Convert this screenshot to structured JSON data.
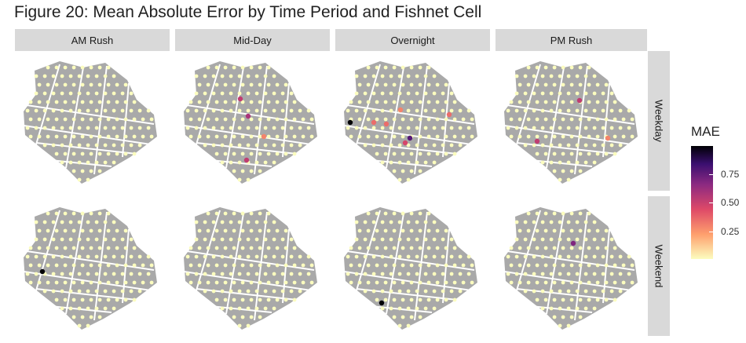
{
  "chart_data": {
    "type": "heatmap",
    "title": "Figure 20: Mean Absolute Error by Time Period and Fishnet Cell",
    "facet_columns": [
      "AM Rush",
      "Mid-Day",
      "Overnight",
      "PM Rush"
    ],
    "facet_rows": [
      "Weekday",
      "Weekend"
    ],
    "color_scale": {
      "name": "magma",
      "label": "MAE",
      "ticks": [
        0.25,
        0.5,
        0.75
      ],
      "tick_labels": [
        "0.25",
        "0.50",
        "0.75"
      ],
      "range": [
        0.0,
        0.95
      ],
      "colors": [
        "#fcfdbf",
        "#fe9f6d",
        "#de4968",
        "#8c2981",
        "#3b0f70",
        "#000004"
      ]
    },
    "base_color": "#a9a9a9",
    "street_color": "#ffffff",
    "highlighted_cells": [
      {
        "period": "Mid-Day",
        "day": "Weekday",
        "mae": 0.45
      },
      {
        "period": "Mid-Day",
        "day": "Weekday",
        "mae": 0.5
      },
      {
        "period": "Mid-Day",
        "day": "Weekday",
        "mae": 0.25
      },
      {
        "period": "Mid-Day",
        "day": "Weekday",
        "mae": 0.45
      },
      {
        "period": "Overnight",
        "day": "Weekday",
        "mae": 0.95
      },
      {
        "period": "Overnight",
        "day": "Weekday",
        "mae": 0.3
      },
      {
        "period": "Overnight",
        "day": "Weekday",
        "mae": 0.3
      },
      {
        "period": "Overnight",
        "day": "Weekday",
        "mae": 0.25
      },
      {
        "period": "Overnight",
        "day": "Weekday",
        "mae": 0.7
      },
      {
        "period": "Overnight",
        "day": "Weekday",
        "mae": 0.4
      },
      {
        "period": "Overnight",
        "day": "Weekday",
        "mae": 0.3
      },
      {
        "period": "PM Rush",
        "day": "Weekday",
        "mae": 0.45
      },
      {
        "period": "PM Rush",
        "day": "Weekday",
        "mae": 0.45
      },
      {
        "period": "PM Rush",
        "day": "Weekday",
        "mae": 0.25
      },
      {
        "period": "AM Rush",
        "day": "Weekend",
        "mae": 0.95
      },
      {
        "period": "Overnight",
        "day": "Weekend",
        "mae": 0.95
      },
      {
        "period": "PM Rush",
        "day": "Weekend",
        "mae": 0.6
      }
    ]
  }
}
